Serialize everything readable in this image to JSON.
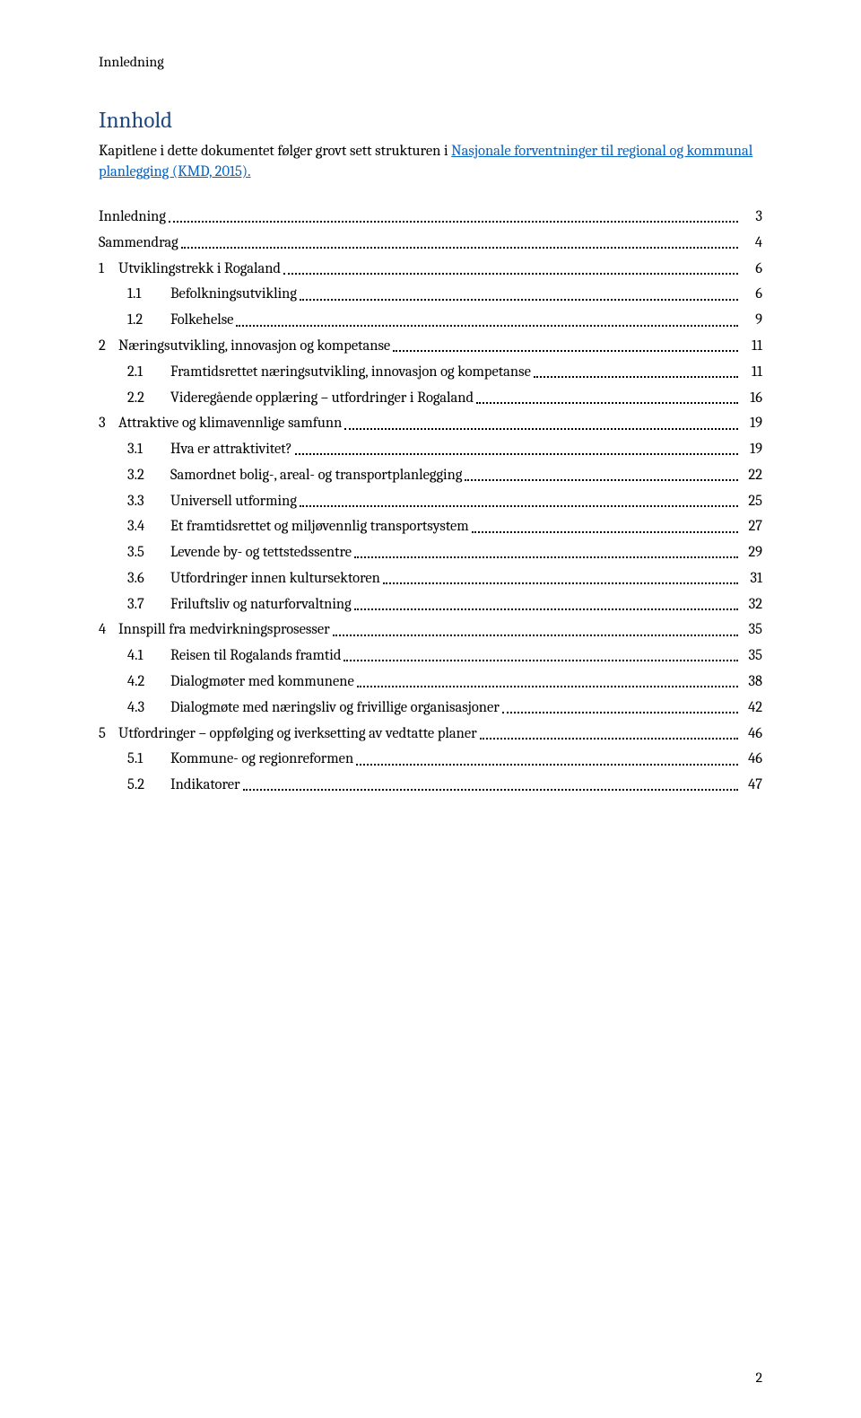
{
  "header": {
    "label": "Innledning"
  },
  "title": "Innhold",
  "intro": {
    "before_link": "Kapitlene i dette dokumentet følger grovt sett strukturen i ",
    "link_text": "Nasjonale forventninger til regional og kommunal planlegging (KMD, 2015).",
    "after_link": ""
  },
  "toc": [
    {
      "level": 1,
      "num": "",
      "label": "Innledning",
      "page": "3"
    },
    {
      "level": 1,
      "num": "",
      "label": "Sammendrag",
      "page": "4"
    },
    {
      "level": 1,
      "num": "1",
      "label": "Utviklingstrekk i Rogaland",
      "page": "6"
    },
    {
      "level": 2,
      "num": "1.1",
      "label": "Befolkningsutvikling",
      "page": "6"
    },
    {
      "level": 2,
      "num": "1.2",
      "label": "Folkehelse",
      "page": "9"
    },
    {
      "level": 1,
      "num": "2",
      "label": "Næringsutvikling, innovasjon og kompetanse",
      "page": "11"
    },
    {
      "level": 2,
      "num": "2.1",
      "label": "Framtidsrettet næringsutvikling, innovasjon og kompetanse",
      "page": "11"
    },
    {
      "level": 2,
      "num": "2.2",
      "label": "Videregående opplæring – utfordringer i Rogaland",
      "page": "16"
    },
    {
      "level": 1,
      "num": "3",
      "label": "Attraktive og klimavennlige samfunn",
      "page": "19"
    },
    {
      "level": 2,
      "num": "3.1",
      "label": "Hva er attraktivitet?",
      "page": "19"
    },
    {
      "level": 2,
      "num": "3.2",
      "label": "Samordnet bolig-, areal- og transportplanlegging",
      "page": "22"
    },
    {
      "level": 2,
      "num": "3.3",
      "label": "Universell utforming",
      "page": "25"
    },
    {
      "level": 2,
      "num": "3.4",
      "label": "Et framtidsrettet og miljøvennlig transportsystem",
      "page": "27"
    },
    {
      "level": 2,
      "num": "3.5",
      "label": "Levende by- og tettstedssentre",
      "page": "29"
    },
    {
      "level": 2,
      "num": "3.6",
      "label": "Utfordringer innen kultursektoren",
      "page": "31"
    },
    {
      "level": 2,
      "num": "3.7",
      "label": "Friluftsliv og naturforvaltning",
      "page": "32"
    },
    {
      "level": 1,
      "num": "4",
      "label": "Innspill fra medvirkningsprosesser",
      "page": "35"
    },
    {
      "level": 2,
      "num": "4.1",
      "label": "Reisen til Rogalands framtid",
      "page": "35"
    },
    {
      "level": 2,
      "num": "4.2",
      "label": "Dialogmøter med kommunene",
      "page": "38"
    },
    {
      "level": 2,
      "num": "4.3",
      "label": "Dialogmøte med næringsliv og frivillige organisasjoner",
      "page": "42"
    },
    {
      "level": 1,
      "num": "5",
      "label": "Utfordringer – oppfølging og iverksetting av vedtatte planer",
      "page": "46"
    },
    {
      "level": 2,
      "num": "5.1",
      "label": "Kommune- og regionreformen",
      "page": "46"
    },
    {
      "level": 2,
      "num": "5.2",
      "label": "Indikatorer",
      "page": "47"
    }
  ],
  "footer": {
    "page_number": "2"
  },
  "style": {
    "background_color": "#ffffff",
    "text_color": "#000000",
    "title_color": "#1f497d",
    "link_color": "#0563c1",
    "body_fontsize": 16.5,
    "title_fontsize": 25,
    "header_fontsize": 16,
    "font_family": "Cambria, Georgia, serif"
  }
}
